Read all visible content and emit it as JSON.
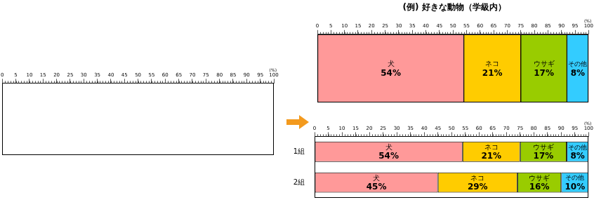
{
  "chart_data": [
    {
      "type": "bar",
      "orientation": "horizontal",
      "stacked": true,
      "xlabel": "(%)",
      "categories": [
        null
      ],
      "series": [],
      "xlim": [
        0,
        100
      ],
      "xticks": [
        0,
        5,
        10,
        15,
        20,
        25,
        30,
        35,
        40,
        45,
        50,
        55,
        60,
        65,
        70,
        75,
        80,
        85,
        90,
        95,
        100
      ],
      "tick_labels": "x",
      "data_labels": true
    },
    {
      "type": "bar",
      "orientation": "horizontal",
      "stacked": true,
      "title": "(例) 好きな動物（学級内）",
      "xlabel": "(%)",
      "categories": [
        null
      ],
      "series": [
        {
          "name": "犬",
          "color": "#ff9999",
          "values": [
            54
          ],
          "value_labels": [
            "54%"
          ]
        },
        {
          "name": "ネコ",
          "color": "#ffcc00",
          "values": [
            21
          ],
          "value_labels": [
            "21%"
          ]
        },
        {
          "name": "ウサギ",
          "color": "#99cc00",
          "values": [
            17
          ],
          "value_labels": [
            "17%"
          ]
        },
        {
          "name": "その他",
          "color": "#33ccff",
          "values": [
            8
          ],
          "value_labels": [
            "8%"
          ]
        }
      ],
      "xlim": [
        0,
        100
      ],
      "xticks": [
        0,
        5,
        10,
        15,
        20,
        25,
        30,
        35,
        40,
        45,
        50,
        55,
        60,
        65,
        70,
        75,
        80,
        85,
        90,
        95,
        100
      ],
      "tick_labels": "x",
      "data_labels": true
    },
    {
      "type": "bar",
      "orientation": "horizontal",
      "stacked": true,
      "xlabel": "(%)",
      "categories": [
        "1組",
        "2組"
      ],
      "series": [
        {
          "name": "犬",
          "color": "#ff9999",
          "values": [
            54,
            45
          ],
          "value_labels": [
            "54%",
            "45%"
          ]
        },
        {
          "name": "ネコ",
          "color": "#ffcc00",
          "values": [
            21,
            29
          ],
          "value_labels": [
            "21%",
            "29%"
          ]
        },
        {
          "name": "ウサギ",
          "color": "#99cc00",
          "values": [
            17,
            16
          ],
          "value_labels": [
            "17%",
            "16%"
          ]
        },
        {
          "name": "その他",
          "color": "#33ccff",
          "values": [
            8,
            10
          ],
          "value_labels": [
            "8%",
            "10%"
          ]
        }
      ],
      "xlim": [
        0,
        100
      ],
      "xticks": [
        0,
        5,
        10,
        15,
        20,
        25,
        30,
        35,
        40,
        45,
        50,
        55,
        60,
        65,
        70,
        75,
        80,
        85,
        90,
        95,
        100
      ],
      "data_labels": true
    }
  ]
}
